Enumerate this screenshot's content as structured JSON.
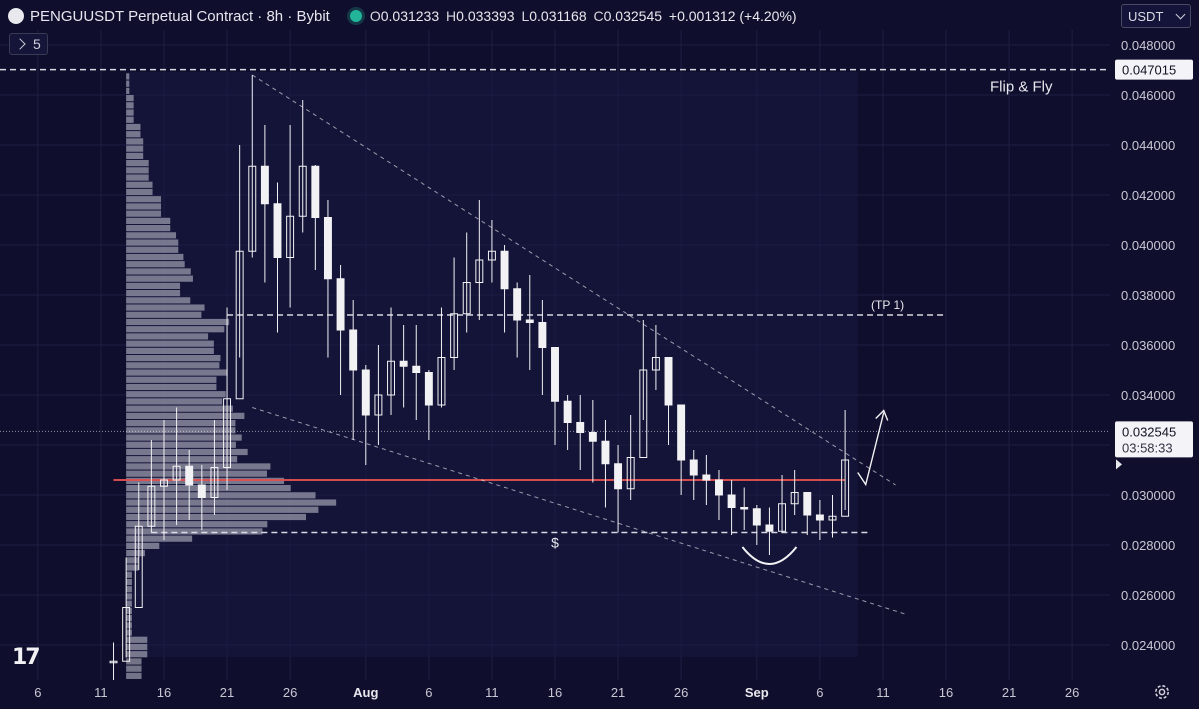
{
  "header": {
    "title": "PENGUUSDT Perpetual Contract · 8h · Bybit",
    "ohlc": [
      {
        "k": "O",
        "v": "0.031233"
      },
      {
        "k": "H",
        "v": "0.033393"
      },
      {
        "k": "L",
        "v": "0.031168"
      },
      {
        "k": "C",
        "v": "0.032545"
      }
    ],
    "change": "+0.001312 (+4.20%)",
    "currency": "USDT",
    "indicator_count": "5"
  },
  "colors": {
    "background": "#0f0f2d",
    "candle": "#f2f2f4",
    "support_line": "#e05050",
    "grid": "#1e1e42",
    "profile": "#c9c9d6",
    "header_dot": "#22b59a"
  },
  "chart_data": {
    "type": "candlestick",
    "title": "PENGUUSDT Perpetual Contract · 8h · Bybit",
    "x_axis": {
      "ticks": [
        {
          "label": "6",
          "date": "2025-07-06"
        },
        {
          "label": "11",
          "date": "2025-07-11"
        },
        {
          "label": "16",
          "date": "2025-07-16"
        },
        {
          "label": "21",
          "date": "2025-07-21"
        },
        {
          "label": "26",
          "date": "2025-07-26"
        },
        {
          "label": "Aug",
          "date": "2025-08-01"
        },
        {
          "label": "6",
          "date": "2025-08-06"
        },
        {
          "label": "11",
          "date": "2025-08-11"
        },
        {
          "label": "16",
          "date": "2025-08-16"
        },
        {
          "label": "21",
          "date": "2025-08-21"
        },
        {
          "label": "26",
          "date": "2025-08-26"
        },
        {
          "label": "Sep",
          "date": "2025-09-01"
        },
        {
          "label": "6",
          "date": "2025-09-06"
        },
        {
          "label": "11",
          "date": "2025-09-11"
        },
        {
          "label": "16",
          "date": "2025-09-16"
        },
        {
          "label": "21",
          "date": "2025-09-21"
        },
        {
          "label": "26",
          "date": "2025-09-26"
        }
      ],
      "range": [
        "2025-07-03",
        "2025-09-29"
      ]
    },
    "y_axis": {
      "ticks": [
        "0.024000",
        "0.026000",
        "0.028000",
        "0.030000",
        "0.032000",
        "0.034000",
        "0.036000",
        "0.038000",
        "0.040000",
        "0.042000",
        "0.044000",
        "0.046000",
        "0.048000"
      ],
      "range": [
        0.0226,
        0.0486
      ]
    },
    "grid": true,
    "series": [
      {
        "points": [
          [
            "2025-07-12",
            0.0226,
            0.0241
          ],
          [
            "2025-07-13",
            0.0235,
            0.0275
          ],
          [
            "2025-07-14",
            0.027,
            0.0305
          ],
          [
            "2025-07-15",
            0.0285,
            0.0322
          ],
          [
            "2025-07-16",
            0.0282,
            0.033
          ],
          [
            "2025-07-17",
            0.0288,
            0.0335
          ],
          [
            "2025-07-18",
            0.029,
            0.0318
          ],
          [
            "2025-07-19",
            0.0286,
            0.0312
          ],
          [
            "2025-07-20",
            0.0292,
            0.033
          ],
          [
            "2025-07-21",
            0.0302,
            0.0375
          ],
          [
            "2025-07-22",
            0.0355,
            0.044
          ],
          [
            "2025-07-23",
            0.0395,
            0.0468
          ],
          [
            "2025-07-24",
            0.0385,
            0.0448
          ],
          [
            "2025-07-25",
            0.0365,
            0.0425
          ],
          [
            "2025-07-26",
            0.0375,
            0.0448
          ],
          [
            "2025-07-27",
            0.0405,
            0.0458
          ],
          [
            "2025-07-28",
            0.039,
            0.0432
          ],
          [
            "2025-07-29",
            0.0355,
            0.0418
          ],
          [
            "2025-07-30",
            0.034,
            0.0392
          ],
          [
            "2025-07-31",
            0.0322,
            0.0378
          ],
          [
            "2025-08-01",
            0.0312,
            0.0352
          ],
          [
            "2025-08-02",
            0.032,
            0.036
          ],
          [
            "2025-08-03",
            0.0332,
            0.0375
          ],
          [
            "2025-08-04",
            0.0335,
            0.0368
          ],
          [
            "2025-08-05",
            0.033,
            0.0368
          ],
          [
            "2025-08-06",
            0.0322,
            0.035
          ],
          [
            "2025-08-07",
            0.0335,
            0.0375
          ],
          [
            "2025-08-08",
            0.035,
            0.0395
          ],
          [
            "2025-08-09",
            0.0365,
            0.0405
          ],
          [
            "2025-08-10",
            0.037,
            0.0418
          ],
          [
            "2025-08-11",
            0.0385,
            0.041
          ],
          [
            "2025-08-12",
            0.0365,
            0.04
          ],
          [
            "2025-08-13",
            0.0355,
            0.0385
          ],
          [
            "2025-08-14",
            0.035,
            0.0388
          ],
          [
            "2025-08-15",
            0.034,
            0.0378
          ],
          [
            "2025-08-16",
            0.032,
            0.0355
          ],
          [
            "2025-08-17",
            0.0318,
            0.034
          ],
          [
            "2025-08-18",
            0.031,
            0.034
          ],
          [
            "2025-08-19",
            0.0305,
            0.0338
          ],
          [
            "2025-08-20",
            0.0295,
            0.033
          ],
          [
            "2025-08-21",
            0.0285,
            0.032
          ],
          [
            "2025-08-22",
            0.0298,
            0.0332
          ],
          [
            "2025-08-23",
            0.033,
            0.037
          ],
          [
            "2025-08-24",
            0.0342,
            0.0368
          ],
          [
            "2025-08-25",
            0.032,
            0.0352
          ],
          [
            "2025-08-26",
            0.03,
            0.0328
          ],
          [
            "2025-08-27",
            0.0298,
            0.0318
          ],
          [
            "2025-08-28",
            0.0296,
            0.0316
          ],
          [
            "2025-08-29",
            0.029,
            0.031
          ],
          [
            "2025-08-30",
            0.0284,
            0.0306
          ],
          [
            "2025-08-31",
            0.0286,
            0.0303
          ],
          [
            "2025-09-01",
            0.028,
            0.0296
          ],
          [
            "2025-09-02",
            0.0276,
            0.0295
          ],
          [
            "2025-09-03",
            0.0285,
            0.0308
          ],
          [
            "2025-09-04",
            0.0292,
            0.031
          ],
          [
            "2025-09-05",
            0.0284,
            0.03
          ],
          [
            "2025-09-06",
            0.0282,
            0.0298
          ],
          [
            "2025-09-07",
            0.0283,
            0.03
          ],
          [
            "2025-09-08",
            0.0294,
            0.0334
          ]
        ]
      }
    ],
    "lines": [
      {
        "kind": "horizontal",
        "style": "dashed",
        "value": 0.047015,
        "label": "Flip & Fly"
      },
      {
        "kind": "horizontal",
        "style": "dashed",
        "value": 0.0372,
        "label": "(TP 1)",
        "from": "2025-07-21",
        "to": "2025-09-16"
      },
      {
        "kind": "horizontal",
        "style": "dashed",
        "value": 0.0285,
        "from": "2025-07-15",
        "to": "2025-09-10"
      },
      {
        "kind": "horizontal",
        "style": "solid",
        "value": 0.0306,
        "from": "2025-07-12",
        "to": "2025-09-08"
      },
      {
        "kind": "trendline",
        "style": "dashed",
        "from": [
          "2025-07-23",
          0.0468
        ],
        "to": [
          "2025-09-12",
          0.0304
        ]
      },
      {
        "kind": "trendline",
        "style": "dashed",
        "from": [
          "2025-07-23",
          0.0335
        ],
        "to": [
          "2025-09-13",
          0.0252
        ]
      }
    ],
    "annotations": [
      {
        "text": "$",
        "date": "2025-08-16",
        "value": 0.0279
      }
    ],
    "price_labels": {
      "level": "0.047015",
      "last": "0.032545",
      "countdown": "03:58:33"
    }
  }
}
